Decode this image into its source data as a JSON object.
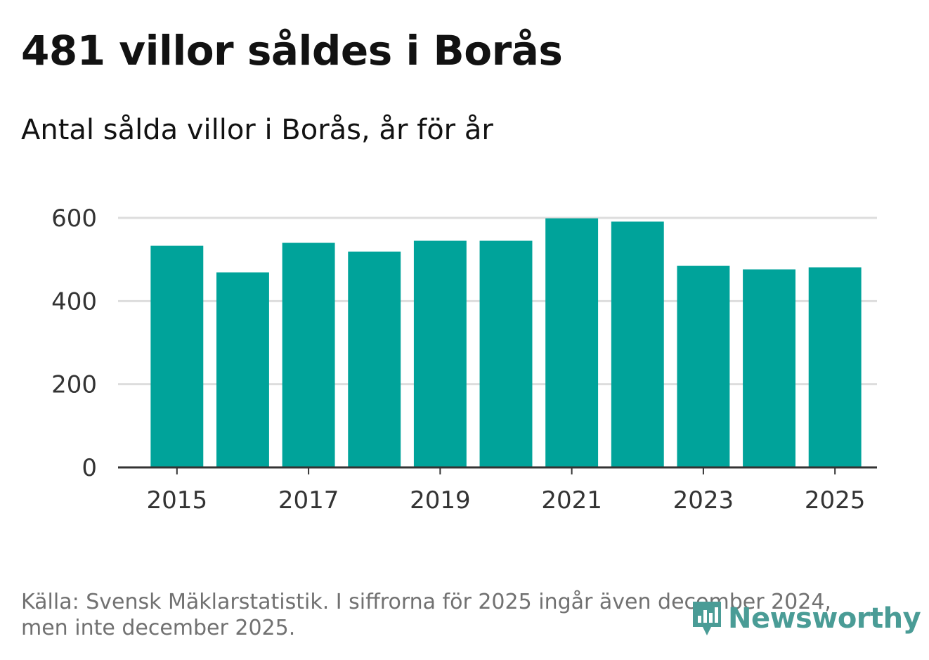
{
  "title": "481 villor såldes i Borås",
  "subtitle": "Antal sålda villor i Borås, år för år",
  "footnote": "Källa: Svensk Mäklarstatistik. I siffrorna för 2025 ingår även december 2024, men inte december 2025.",
  "brand": {
    "name": "Newsworthy",
    "icon": "newsworthy-logo-icon",
    "color": "#4a9c96"
  },
  "colors": {
    "bar": "#00a39a",
    "grid": "#dddddd",
    "axis": "#333333",
    "tick_label": "#333333"
  },
  "chart_data": {
    "type": "bar",
    "title": "Antal sålda villor i Borås, år för år",
    "xlabel": "",
    "ylabel": "",
    "categories": [
      2015,
      2016,
      2017,
      2018,
      2019,
      2020,
      2021,
      2022,
      2023,
      2024,
      2025
    ],
    "values": [
      533,
      469,
      540,
      519,
      545,
      545,
      599,
      591,
      485,
      476,
      481
    ],
    "ylim": [
      0,
      600
    ],
    "yticks": [
      0,
      200,
      400,
      600
    ],
    "xticks": [
      2015,
      2017,
      2019,
      2021,
      2023,
      2025
    ],
    "grid": true,
    "legend": "none"
  }
}
